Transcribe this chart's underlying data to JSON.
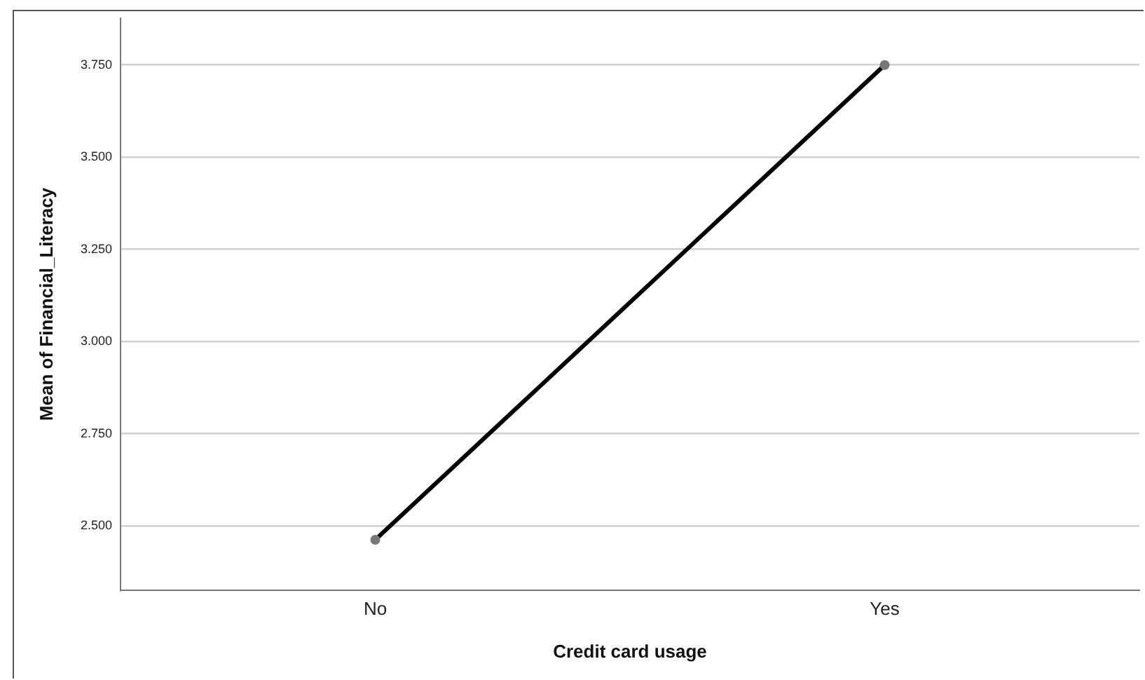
{
  "chart_data": {
    "type": "line",
    "xlabel": "Credit card usage",
    "ylabel": "Mean of Financial_Literacy",
    "categories": [
      "No",
      "Yes"
    ],
    "series": [
      {
        "color": "#000000",
        "values": [
          2.462,
          3.75
        ]
      }
    ],
    "ylim": [
      2.325,
      3.877
    ],
    "yticks": [
      {
        "value": 2.5,
        "label": "2.500"
      },
      {
        "value": 2.75,
        "label": "2.750"
      },
      {
        "value": 3,
        "label": "3.000"
      },
      {
        "value": 3.25,
        "label": "3.250"
      },
      {
        "value": 3.5,
        "label": "3.500"
      },
      {
        "value": 3.75,
        "label": "3.750"
      }
    ],
    "grid": "y",
    "legend": false,
    "marker": "circle",
    "line_style": "solid"
  }
}
